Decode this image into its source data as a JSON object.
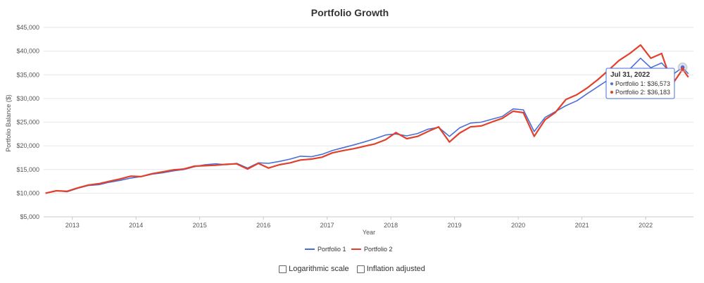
{
  "chart_data": {
    "type": "line",
    "title": "Portfolio Growth",
    "xlabel": "Year",
    "ylabel": "Portfolio Balance ($)",
    "ylim": [
      5000,
      45000
    ],
    "y_ticks": [
      "$5,000",
      "$10,000",
      "$15,000",
      "$20,000",
      "$25,000",
      "$30,000",
      "$35,000",
      "$40,000",
      "$45,000"
    ],
    "y_tick_values": [
      5000,
      10000,
      15000,
      20000,
      25000,
      30000,
      35000,
      40000,
      45000
    ],
    "x_ticks": [
      "2013",
      "2014",
      "2015",
      "2016",
      "2017",
      "2018",
      "2019",
      "2020",
      "2021",
      "2022"
    ],
    "x_tick_values": [
      2013,
      2014,
      2015,
      2016,
      2017,
      2018,
      2019,
      2020,
      2021,
      2022
    ],
    "xlim": [
      2012.55,
      2022.75
    ],
    "grid": true,
    "legend_position": "bottom-center",
    "series": [
      {
        "name": "Portfolio 1",
        "color": "#4a6fd6",
        "points": [
          [
            2012.58,
            10000
          ],
          [
            2012.75,
            10500
          ],
          [
            2012.92,
            10300
          ],
          [
            2013.08,
            11000
          ],
          [
            2013.25,
            11600
          ],
          [
            2013.42,
            11800
          ],
          [
            2013.58,
            12300
          ],
          [
            2013.75,
            12700
          ],
          [
            2013.92,
            13200
          ],
          [
            2014.08,
            13500
          ],
          [
            2014.25,
            14000
          ],
          [
            2014.42,
            14300
          ],
          [
            2014.58,
            14700
          ],
          [
            2014.75,
            15000
          ],
          [
            2014.92,
            15600
          ],
          [
            2015.08,
            16000
          ],
          [
            2015.25,
            16200
          ],
          [
            2015.42,
            16000
          ],
          [
            2015.58,
            16300
          ],
          [
            2015.75,
            15300
          ],
          [
            2015.92,
            16400
          ],
          [
            2016.08,
            16300
          ],
          [
            2016.25,
            16700
          ],
          [
            2016.42,
            17200
          ],
          [
            2016.58,
            17800
          ],
          [
            2016.75,
            17700
          ],
          [
            2016.92,
            18200
          ],
          [
            2017.08,
            19000
          ],
          [
            2017.25,
            19600
          ],
          [
            2017.42,
            20200
          ],
          [
            2017.58,
            20800
          ],
          [
            2017.75,
            21500
          ],
          [
            2017.92,
            22300
          ],
          [
            2018.08,
            22500
          ],
          [
            2018.25,
            22100
          ],
          [
            2018.42,
            22600
          ],
          [
            2018.58,
            23500
          ],
          [
            2018.75,
            23900
          ],
          [
            2018.92,
            22000
          ],
          [
            2019.08,
            23800
          ],
          [
            2019.25,
            24800
          ],
          [
            2019.42,
            25000
          ],
          [
            2019.58,
            25600
          ],
          [
            2019.75,
            26200
          ],
          [
            2019.92,
            27800
          ],
          [
            2020.08,
            27600
          ],
          [
            2020.25,
            23000
          ],
          [
            2020.42,
            26000
          ],
          [
            2020.58,
            27200
          ],
          [
            2020.75,
            28500
          ],
          [
            2020.92,
            29500
          ],
          [
            2021.08,
            31000
          ],
          [
            2021.25,
            32500
          ],
          [
            2021.42,
            34000
          ],
          [
            2021.58,
            35500
          ],
          [
            2021.75,
            36200
          ],
          [
            2021.92,
            38500
          ],
          [
            2022.08,
            36500
          ],
          [
            2022.25,
            37500
          ],
          [
            2022.42,
            35000
          ],
          [
            2022.58,
            36573
          ],
          [
            2022.67,
            35200
          ]
        ]
      },
      {
        "name": "Portfolio 2",
        "color": "#e2402a",
        "points": [
          [
            2012.58,
            10000
          ],
          [
            2012.75,
            10500
          ],
          [
            2012.92,
            10400
          ],
          [
            2013.08,
            11100
          ],
          [
            2013.25,
            11700
          ],
          [
            2013.42,
            12000
          ],
          [
            2013.58,
            12500
          ],
          [
            2013.75,
            13000
          ],
          [
            2013.92,
            13600
          ],
          [
            2014.08,
            13500
          ],
          [
            2014.25,
            14100
          ],
          [
            2014.42,
            14500
          ],
          [
            2014.58,
            14900
          ],
          [
            2014.75,
            15100
          ],
          [
            2014.92,
            15700
          ],
          [
            2015.08,
            15800
          ],
          [
            2015.25,
            15900
          ],
          [
            2015.42,
            16100
          ],
          [
            2015.58,
            16200
          ],
          [
            2015.75,
            15100
          ],
          [
            2015.92,
            16300
          ],
          [
            2016.08,
            15300
          ],
          [
            2016.25,
            16000
          ],
          [
            2016.42,
            16400
          ],
          [
            2016.58,
            17000
          ],
          [
            2016.75,
            17200
          ],
          [
            2016.92,
            17600
          ],
          [
            2017.08,
            18500
          ],
          [
            2017.25,
            19000
          ],
          [
            2017.42,
            19400
          ],
          [
            2017.58,
            19900
          ],
          [
            2017.75,
            20400
          ],
          [
            2017.92,
            21300
          ],
          [
            2018.08,
            22800
          ],
          [
            2018.25,
            21500
          ],
          [
            2018.42,
            22000
          ],
          [
            2018.58,
            23000
          ],
          [
            2018.75,
            24000
          ],
          [
            2018.92,
            20800
          ],
          [
            2019.08,
            22700
          ],
          [
            2019.25,
            24000
          ],
          [
            2019.42,
            24200
          ],
          [
            2019.58,
            25000
          ],
          [
            2019.75,
            25800
          ],
          [
            2019.92,
            27300
          ],
          [
            2020.08,
            27000
          ],
          [
            2020.25,
            22000
          ],
          [
            2020.42,
            25500
          ],
          [
            2020.58,
            27000
          ],
          [
            2020.75,
            29800
          ],
          [
            2020.92,
            30800
          ],
          [
            2021.08,
            32200
          ],
          [
            2021.25,
            34000
          ],
          [
            2021.42,
            36000
          ],
          [
            2021.58,
            38000
          ],
          [
            2021.75,
            39500
          ],
          [
            2021.92,
            41300
          ],
          [
            2022.08,
            38500
          ],
          [
            2022.25,
            39500
          ],
          [
            2022.42,
            33000
          ],
          [
            2022.58,
            36183
          ],
          [
            2022.67,
            34500
          ]
        ]
      }
    ],
    "tooltip": {
      "title": "Jul 31, 2022",
      "lines": [
        "Portfolio 1: $36,573",
        "Portfolio 2: $36,183"
      ],
      "x": 2022.58,
      "y": 36573
    }
  },
  "options": {
    "log_scale_label": "Logarithmic scale",
    "inflation_label": "Inflation adjusted"
  }
}
